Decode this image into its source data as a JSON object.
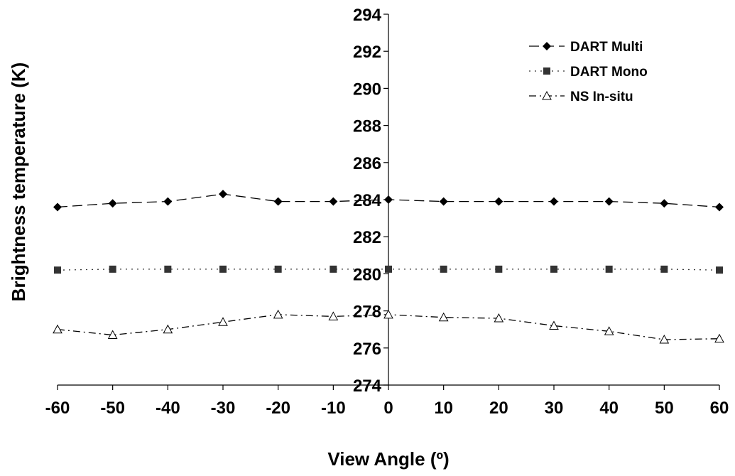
{
  "chart_data": {
    "type": "line",
    "xlabel": "View Angle (º)",
    "ylabel": "Brightness temperature (K)",
    "xlim": [
      -60,
      60
    ],
    "ylim": [
      274,
      294
    ],
    "x": [
      -60,
      -50,
      -40,
      -30,
      -20,
      -10,
      0,
      10,
      20,
      30,
      40,
      50,
      60
    ],
    "x_ticks": [
      -60,
      -50,
      -40,
      -30,
      -20,
      -10,
      0,
      10,
      20,
      30,
      40,
      50,
      60
    ],
    "y_ticks": [
      274,
      276,
      278,
      280,
      282,
      284,
      286,
      288,
      290,
      292,
      294
    ],
    "grid": false,
    "legend_position": "top-right",
    "series": [
      {
        "name": "DART Multi",
        "marker": "diamond",
        "line_style": "long-dash",
        "color": "#000000",
        "values": [
          283.6,
          283.8,
          283.9,
          284.3,
          283.9,
          283.9,
          284.0,
          283.9,
          283.9,
          283.9,
          283.9,
          283.8,
          283.6
        ]
      },
      {
        "name": "DART Mono",
        "marker": "square",
        "line_style": "dotted",
        "color": "#333333",
        "values": [
          280.2,
          280.25,
          280.25,
          280.25,
          280.25,
          280.25,
          280.25,
          280.25,
          280.25,
          280.25,
          280.25,
          280.25,
          280.2
        ]
      },
      {
        "name": "NS In-situ",
        "marker": "triangle-open",
        "line_style": "dash-dot",
        "color": "#000000",
        "values": [
          277.0,
          276.7,
          277.0,
          277.4,
          277.8,
          277.7,
          277.8,
          277.65,
          277.6,
          277.2,
          276.9,
          276.45,
          276.5
        ]
      }
    ]
  }
}
